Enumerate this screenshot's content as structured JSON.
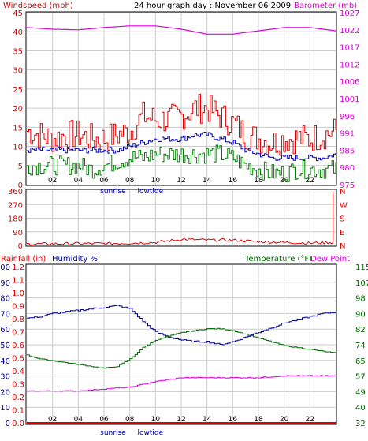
{
  "header": {
    "left_label": "Windspeed (mph)",
    "title": "24 hour graph day : November 06 2009",
    "right_label": "Barometer (mb)"
  },
  "markers": [
    "sunrise",
    "lowtide"
  ],
  "colors": {
    "wind": "#dd0000",
    "wind_avg": "#0000bb",
    "gust_min": "#008000",
    "baro": "#dd00dd",
    "dir": "#dd0000",
    "humidity": "#000099",
    "temperature": "#006600",
    "dewpoint": "#dd00dd",
    "rain": "#dd0000",
    "grid": "#cccccc"
  },
  "chart_data": [
    {
      "type": "line",
      "name": "wind-barometer",
      "x_ticks": [
        "02",
        "04",
        "06",
        "08",
        "10",
        "12",
        "14",
        "16",
        "18",
        "20",
        "22"
      ],
      "y_left_ticks": [
        "0",
        "5",
        "10",
        "15",
        "20",
        "25",
        "30",
        "35",
        "40",
        "45"
      ],
      "y_left_range": [
        0,
        45
      ],
      "y_right_ticks": [
        "975",
        "980",
        "985",
        "991",
        "996",
        "1001",
        "1006",
        "1012",
        "1017",
        "1022",
        "1027"
      ],
      "y_right_range": [
        975,
        1027
      ],
      "series": [
        {
          "key": "wind_max",
          "x": [
            0,
            1,
            2,
            3,
            4,
            5,
            6,
            7,
            8,
            9,
            10,
            11,
            12,
            13,
            14,
            15,
            16,
            17,
            18,
            19,
            20,
            21,
            22,
            23,
            24
          ],
          "values": [
            14,
            13,
            12,
            13,
            13,
            12,
            12,
            13,
            14,
            18,
            17,
            17,
            18,
            20,
            20,
            18,
            16,
            13,
            12,
            11,
            12,
            12,
            12,
            13,
            14
          ]
        },
        {
          "key": "wind_avg",
          "x": [
            0,
            1,
            2,
            3,
            4,
            5,
            6,
            7,
            8,
            9,
            10,
            11,
            12,
            13,
            14,
            15,
            16,
            17,
            18,
            19,
            20,
            21,
            22,
            23,
            24
          ],
          "values": [
            9,
            9,
            9,
            9,
            9,
            9,
            9,
            9,
            10,
            11,
            12,
            12,
            12,
            13,
            13,
            12,
            11,
            9,
            8,
            7,
            7,
            7,
            7,
            7,
            8
          ]
        },
        {
          "key": "wind_min",
          "x": [
            0,
            1,
            2,
            3,
            4,
            5,
            6,
            7,
            8,
            9,
            10,
            11,
            12,
            13,
            14,
            15,
            16,
            17,
            18,
            19,
            20,
            21,
            22,
            23,
            24
          ],
          "values": [
            5,
            5,
            5,
            5,
            5,
            4,
            5,
            6,
            7,
            7,
            8,
            8,
            8,
            8,
            8,
            8,
            7,
            5,
            4,
            3,
            3,
            4,
            4,
            4,
            4
          ]
        },
        {
          "key": "barometer",
          "x": [
            0,
            2,
            4,
            6,
            8,
            10,
            12,
            14,
            16,
            18,
            20,
            22,
            24
          ],
          "values": [
            1022.5,
            1022,
            1021.8,
            1022.5,
            1023,
            1023,
            1022,
            1020.5,
            1020.5,
            1021.5,
            1022.5,
            1022.5,
            1021.5
          ]
        }
      ]
    },
    {
      "type": "line",
      "name": "wind-direction",
      "x_ticks": [
        "02",
        "04",
        "06",
        "08",
        "10",
        "12",
        "14",
        "16",
        "18",
        "20",
        "22"
      ],
      "y_left_ticks": [
        "0",
        "90",
        "180",
        "270",
        "360"
      ],
      "y_left_range": [
        0,
        360
      ],
      "y_right_labels": [
        "N",
        "E",
        "S",
        "W",
        "N"
      ],
      "series": [
        {
          "key": "direction",
          "x": [
            0,
            2,
            4,
            6,
            8,
            10,
            12,
            14,
            16,
            18,
            20,
            22,
            23.8,
            24
          ],
          "values": [
            10,
            10,
            12,
            12,
            15,
            20,
            40,
            35,
            35,
            25,
            20,
            15,
            20,
            350
          ]
        }
      ]
    },
    {
      "type": "line",
      "name": "rain-humidity-temp",
      "labels": {
        "rainfall": "Rainfall (in)",
        "humidity": "Humidity %",
        "temperature": "Temperature (°F)",
        "dewpoint": "Dew Point"
      },
      "x_ticks": [
        "02",
        "04",
        "06",
        "08",
        "10",
        "12",
        "14",
        "16",
        "18",
        "20",
        "22"
      ],
      "y_rain_ticks": [
        "0.0",
        "0.1",
        "0.2",
        "0.3",
        "0.4",
        "0.5",
        "0.6",
        "0.7",
        "0.8",
        "0.9",
        "1.0",
        "1.1",
        "1.2"
      ],
      "y_hum_ticks": [
        "0",
        "10",
        "20",
        "30",
        "40",
        "50",
        "60",
        "70",
        "80",
        "90",
        "100"
      ],
      "y_temp_ticks": [
        "32",
        "40",
        "49",
        "57",
        "65",
        "74",
        "82",
        "90",
        "98",
        "107",
        "115"
      ],
      "y_temp_range": [
        32,
        115
      ],
      "series": [
        {
          "key": "humidity",
          "x": [
            0,
            1,
            2,
            3,
            4,
            5,
            6,
            7,
            8,
            9,
            10,
            11,
            12,
            13,
            14,
            15,
            16,
            17,
            18,
            19,
            20,
            21,
            22,
            23,
            24
          ],
          "values": [
            67,
            68,
            70,
            71,
            72,
            73,
            74,
            75,
            73,
            65,
            58,
            55,
            53,
            52,
            52,
            50,
            52,
            55,
            58,
            61,
            64,
            66,
            68,
            70,
            71
          ]
        },
        {
          "key": "temperature",
          "x": [
            0,
            1,
            2,
            3,
            4,
            5,
            6,
            7,
            8,
            9,
            10,
            11,
            12,
            13,
            14,
            15,
            16,
            17,
            18,
            19,
            20,
            21,
            22,
            23,
            24
          ],
          "values": [
            68,
            66,
            65,
            64,
            63,
            62,
            61,
            62,
            66,
            72,
            76,
            78,
            80,
            81,
            82,
            82,
            81,
            79,
            77,
            75,
            73,
            72,
            71,
            70,
            69
          ]
        },
        {
          "key": "dewpoint",
          "x": [
            0,
            2,
            4,
            6,
            8,
            10,
            12,
            14,
            16,
            18,
            20,
            22,
            24
          ],
          "values": [
            49,
            49,
            49,
            50,
            51,
            54,
            56,
            56,
            56,
            56,
            57,
            57,
            57
          ]
        },
        {
          "key": "rainfall",
          "x": [
            0,
            24
          ],
          "values": [
            0,
            0
          ]
        }
      ]
    }
  ]
}
